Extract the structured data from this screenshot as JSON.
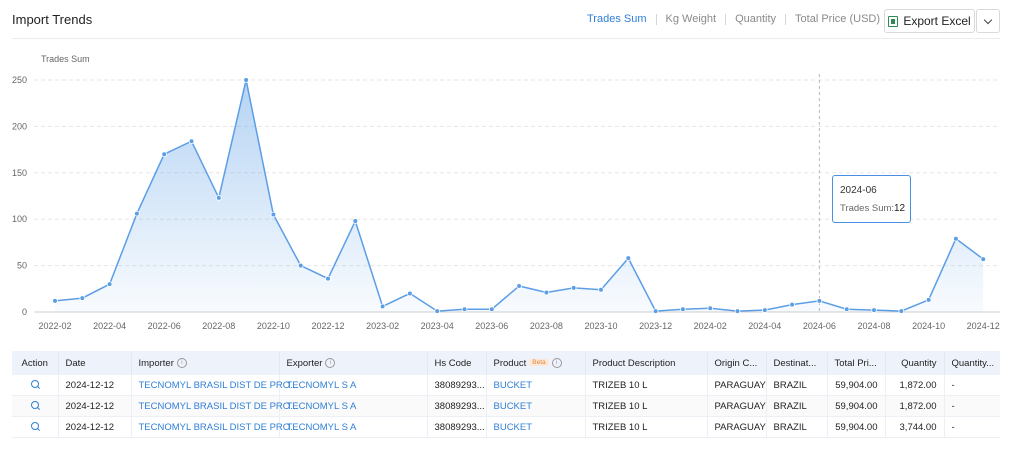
{
  "header": {
    "title": "Import Trends",
    "tabs": [
      {
        "label": "Trades Sum",
        "active": true
      },
      {
        "label": "Kg Weight",
        "active": false
      },
      {
        "label": "Quantity",
        "active": false
      },
      {
        "label": "Total Price (USD)",
        "active": false
      }
    ],
    "export_label": "Export Excel"
  },
  "chart_data": {
    "type": "area",
    "ylabel": "Trades Sum",
    "ylim": [
      0,
      250
    ],
    "yticks": [
      0,
      50,
      100,
      150,
      200,
      250
    ],
    "xtick_labels": [
      "2022-02",
      "2022-04",
      "2022-06",
      "2022-08",
      "2022-10",
      "2022-12",
      "2023-02",
      "2023-04",
      "2023-06",
      "2023-08",
      "2023-10",
      "2023-12",
      "2024-02",
      "2024-04",
      "2024-06",
      "2024-08",
      "2024-10",
      "2024-12"
    ],
    "x": [
      "2022-02",
      "2022-03",
      "2022-04",
      "2022-05",
      "2022-06",
      "2022-07",
      "2022-08",
      "2022-09",
      "2022-10",
      "2022-11",
      "2022-12",
      "2023-01",
      "2023-02",
      "2023-03",
      "2023-04",
      "2023-05",
      "2023-06",
      "2023-07",
      "2023-08",
      "2023-09",
      "2023-10",
      "2023-11",
      "2023-12",
      "2024-01",
      "2024-02",
      "2024-03",
      "2024-04",
      "2024-05",
      "2024-06",
      "2024-07",
      "2024-08",
      "2024-09",
      "2024-10",
      "2024-11",
      "2024-12"
    ],
    "values": [
      12,
      15,
      30,
      106,
      170,
      184,
      123,
      250,
      105,
      50,
      36,
      98,
      6,
      20,
      1,
      3,
      3,
      28,
      21,
      26,
      24,
      58,
      1,
      3,
      4,
      1,
      2,
      8,
      12,
      3,
      2,
      1,
      13,
      79,
      57
    ],
    "color": "#5b9ee6",
    "grid": true,
    "highlight": {
      "x": "2024-06",
      "label": "Trades Sum:",
      "value": 12
    }
  },
  "table": {
    "columns": [
      "Action",
      "Date",
      "Importer",
      "Exporter",
      "Hs Code",
      "Product",
      "Product Description",
      "Origin C...",
      "Destinat...",
      "Total Pri...",
      "Quantity",
      "Quantity..."
    ],
    "product_badge": "Beta",
    "rows": [
      {
        "date": "2024-12-12",
        "importer": "TECNOMYL BRASIL DIST DE PRO...",
        "exporter": "TECNOMYL S A",
        "hs_code": "38089293...",
        "product": "BUCKET",
        "description": "TRIZEB 10 L",
        "origin": "PARAGUAY",
        "destination": "BRAZIL",
        "total_price": "59,904.00",
        "quantity": "1,872.00",
        "quantity_unit": "-"
      },
      {
        "date": "2024-12-12",
        "importer": "TECNOMYL BRASIL DIST DE PRO...",
        "exporter": "TECNOMYL S A",
        "hs_code": "38089293...",
        "product": "BUCKET",
        "description": "TRIZEB 10 L",
        "origin": "PARAGUAY",
        "destination": "BRAZIL",
        "total_price": "59,904.00",
        "quantity": "1,872.00",
        "quantity_unit": "-"
      },
      {
        "date": "2024-12-12",
        "importer": "TECNOMYL BRASIL DIST DE PRO...",
        "exporter": "TECNOMYL S A",
        "hs_code": "38089293...",
        "product": "BUCKET",
        "description": "TRIZEB 10 L",
        "origin": "PARAGUAY",
        "destination": "BRAZIL",
        "total_price": "59,904.00",
        "quantity": "3,744.00",
        "quantity_unit": "-"
      }
    ]
  }
}
